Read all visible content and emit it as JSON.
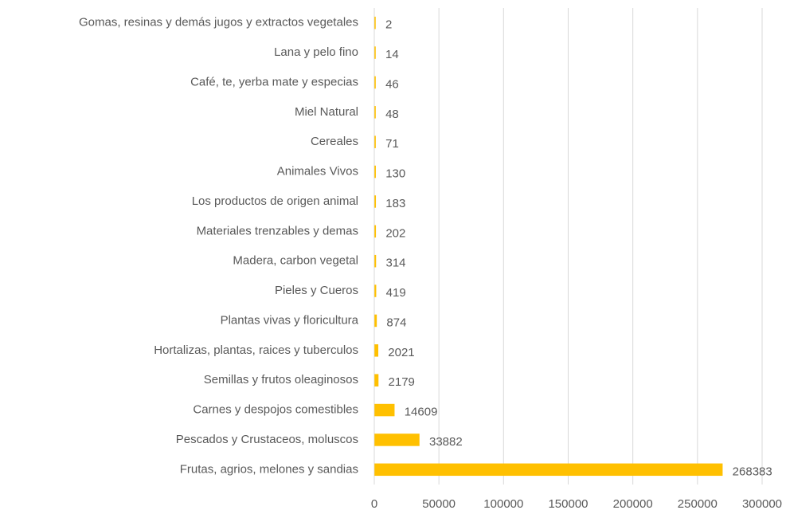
{
  "chart_data": {
    "type": "bar",
    "orientation": "horizontal",
    "categories": [
      "Gomas, resinas y demás jugos y extractos vegetales",
      "Lana y pelo fino",
      "Café, te, yerba mate y especias",
      "Miel Natural",
      "Cereales",
      "Animales Vivos",
      "Los productos de origen animal",
      "Materiales trenzables y demas",
      "Madera, carbon vegetal",
      "Pieles y Cueros",
      "Plantas vivas y floricultura",
      "Hortalizas, plantas, raices y tuberculos",
      "Semillas y frutos oleaginosos",
      "Carnes y despojos comestibles",
      "Pescados y Crustaceos, moluscos",
      "Frutas, agrios, melones y sandias"
    ],
    "values": [
      2,
      14,
      46,
      48,
      71,
      130,
      183,
      202,
      314,
      419,
      874,
      2021,
      2179,
      14609,
      33882,
      268383
    ],
    "color": "#ffc000",
    "xlim": [
      0,
      300000
    ],
    "xticks": [
      0,
      50000,
      100000,
      150000,
      200000,
      250000,
      300000
    ],
    "grid": true
  }
}
